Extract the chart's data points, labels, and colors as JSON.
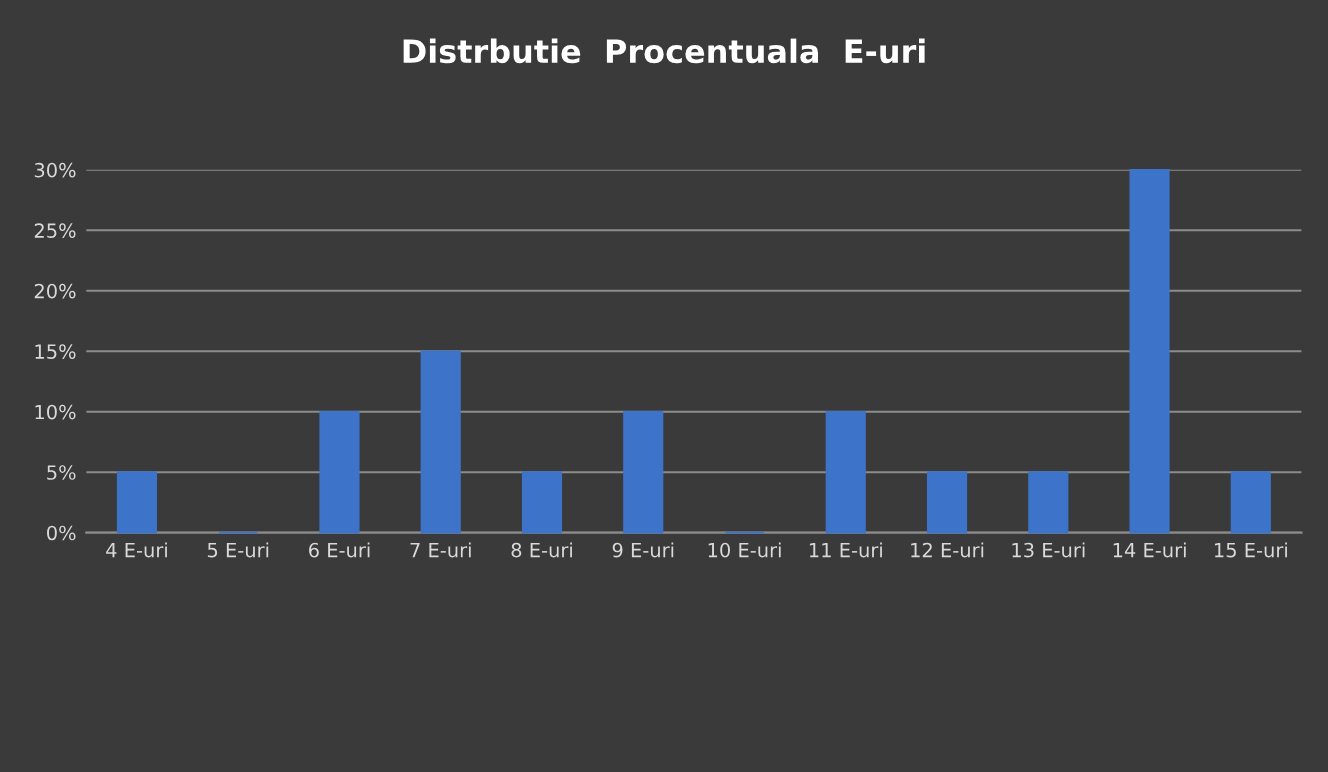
{
  "chart_data": {
    "type": "bar",
    "title": "Distrbutie  Procentuala  E-uri",
    "categories": [
      "4 E-uri",
      "5 E-uri",
      "6 E-uri",
      "7 E-uri",
      "8 E-uri",
      "9 E-uri",
      "10 E-uri",
      "11 E-uri",
      "12 E-uri",
      "13 E-uri",
      "14 E-uri",
      "15 E-uri"
    ],
    "values": [
      5,
      0,
      10,
      15,
      5,
      10,
      0,
      10,
      5,
      5,
      30,
      5
    ],
    "color": "#3d74c9",
    "ylim": [
      0,
      30
    ],
    "yticks": [
      {
        "value": 0,
        "label": "0%"
      },
      {
        "value": 5,
        "label": "5%"
      },
      {
        "value": 10,
        "label": "10%"
      },
      {
        "value": 15,
        "label": "15%"
      },
      {
        "value": 20,
        "label": "20%"
      },
      {
        "value": 25,
        "label": "25%"
      },
      {
        "value": 30,
        "label": "30%"
      }
    ],
    "grid": "y",
    "legend": false
  }
}
